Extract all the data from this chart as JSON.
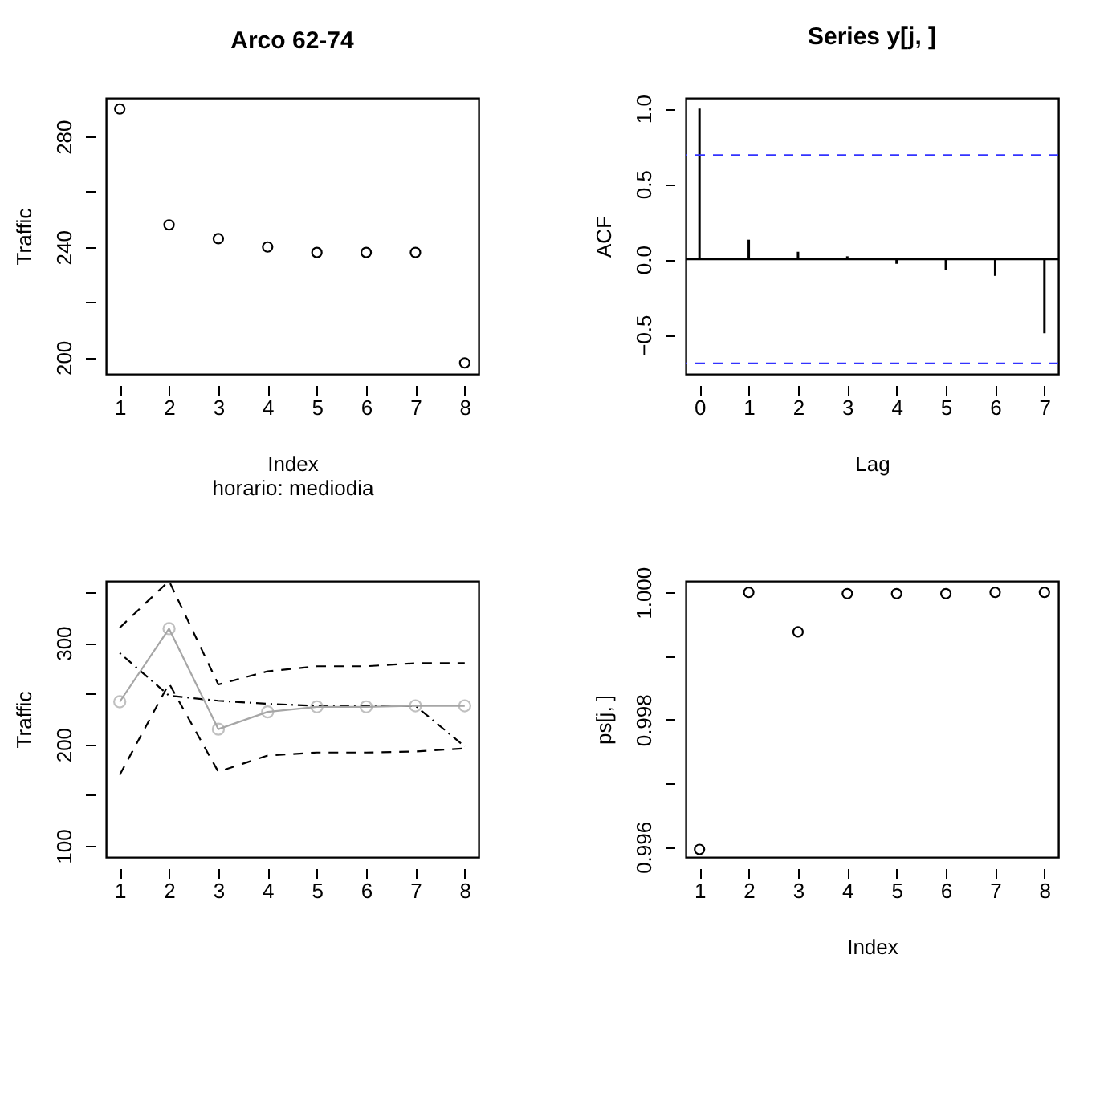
{
  "chart_data": [
    {
      "type": "scatter",
      "title": "Arco  62-74",
      "xlabel": "Index",
      "subtitle": "horario:  mediodia",
      "ylabel": "Traffic",
      "x": [
        1,
        2,
        3,
        4,
        5,
        6,
        7,
        8
      ],
      "values": [
        290,
        248,
        243,
        240,
        238,
        238,
        238,
        198
      ],
      "color": "#000000",
      "marker": "circle",
      "xlim": [
        0.72,
        8.28
      ],
      "xticks": [
        1,
        2,
        3,
        4,
        5,
        6,
        7,
        8
      ],
      "ylim": [
        194,
        294
      ],
      "yticks": [
        200,
        {
          "value": 220,
          "label": null
        },
        240,
        {
          "value": 260,
          "label": null
        },
        280
      ]
    },
    {
      "type": "bar",
      "title": "Series  y[j, ]",
      "xlabel": "Lag",
      "ylabel": "ACF",
      "x": [
        0,
        1,
        2,
        3,
        4,
        5,
        6,
        7
      ],
      "values": [
        1.0,
        0.13,
        0.05,
        0.02,
        -0.03,
        -0.07,
        -0.11,
        -0.49
      ],
      "color": "#000000",
      "xlim": [
        -0.28,
        7.28
      ],
      "xticks": [
        0,
        1,
        2,
        3,
        4,
        5,
        6,
        7
      ],
      "ylim": [
        -0.76,
        1.07
      ],
      "yticks": [
        -0.5,
        {
          "value": 0,
          "label": "0.0"
        },
        0.5,
        {
          "value": 1,
          "label": "1.0"
        }
      ],
      "ref_lines": [
        {
          "axis": "y",
          "value": 0,
          "color": "#000000",
          "line_style": "solid"
        },
        {
          "axis": "y",
          "value": 0.69,
          "color": "#3333ff",
          "line_style": "dashed"
        },
        {
          "axis": "y",
          "value": -0.69,
          "color": "#3333ff",
          "line_style": "dashed"
        }
      ]
    },
    {
      "type": "line",
      "ylabel": "Traffic",
      "x": [
        1,
        2,
        3,
        4,
        5,
        6,
        7,
        8
      ],
      "xlim": [
        0.72,
        8.28
      ],
      "xticks": [
        1,
        2,
        3,
        4,
        5,
        6,
        7,
        8
      ],
      "ylim": [
        89,
        361
      ],
      "yticks": [
        100,
        {
          "value": 150,
          "label": null
        },
        200,
        {
          "value": 250,
          "label": null
        },
        300,
        {
          "value": 350,
          "label": null
        }
      ],
      "series": [
        {
          "color": "#000000",
          "line_style": "dashed",
          "marker": "none",
          "values": [
            315,
            361,
            259,
            272,
            277,
            277,
            280,
            280
          ]
        },
        {
          "color": "#000000",
          "line_style": "dashed",
          "marker": "none",
          "values": [
            170,
            260,
            173,
            189,
            192,
            192,
            193,
            196
          ]
        },
        {
          "color": "#000000",
          "line_style": "dashdot",
          "marker": "none",
          "values": [
            290,
            248,
            243,
            240,
            238,
            238,
            238,
            198
          ]
        },
        {
          "color": "#a6a6a6",
          "line_style": "solid",
          "marker": "circle",
          "values": [
            242,
            314,
            215,
            232,
            237,
            237,
            238,
            238
          ]
        }
      ]
    },
    {
      "type": "scatter",
      "xlabel": "Index",
      "ylabel": "ps[j, ]",
      "x": [
        1,
        2,
        3,
        4,
        5,
        6,
        7,
        8
      ],
      "values": [
        0.99596,
        1.0,
        0.99938,
        0.99998,
        0.99998,
        0.99998,
        1.0,
        1.0
      ],
      "color": "#000000",
      "marker": "circle",
      "xlim": [
        0.72,
        8.28
      ],
      "xticks": [
        1,
        2,
        3,
        4,
        5,
        6,
        7,
        8
      ],
      "ylim": [
        0.99584,
        1.00018
      ],
      "yticks": [
        0.996,
        {
          "value": 0.997,
          "label": null
        },
        0.998,
        {
          "value": 0.999,
          "label": null
        },
        {
          "value": 1,
          "label": "1.000"
        }
      ]
    }
  ]
}
